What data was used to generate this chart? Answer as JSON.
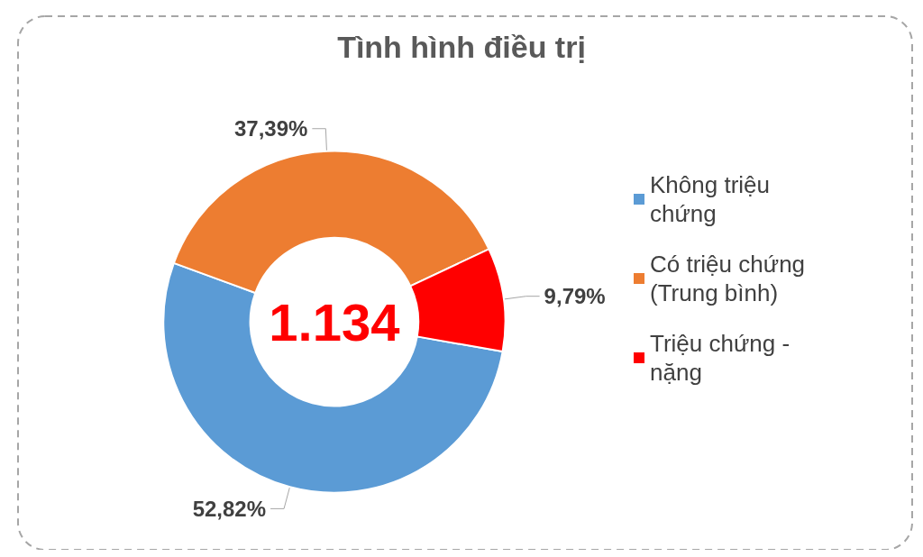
{
  "chart_data": {
    "type": "donut",
    "title": "Tình hình điều trị",
    "categories": [
      "Không triệu chứng",
      "Có triệu chứng (Trung bình)",
      "Triệu chứng - nặng"
    ],
    "values": [
      52.82,
      37.39,
      9.79
    ],
    "colors": [
      "#5b9bd5",
      "#ed7d31",
      "#ff0000"
    ],
    "value_labels": [
      "52,82%",
      "37,39%",
      "9,79%"
    ],
    "annotations": [
      "1.134"
    ],
    "legend": "right"
  }
}
